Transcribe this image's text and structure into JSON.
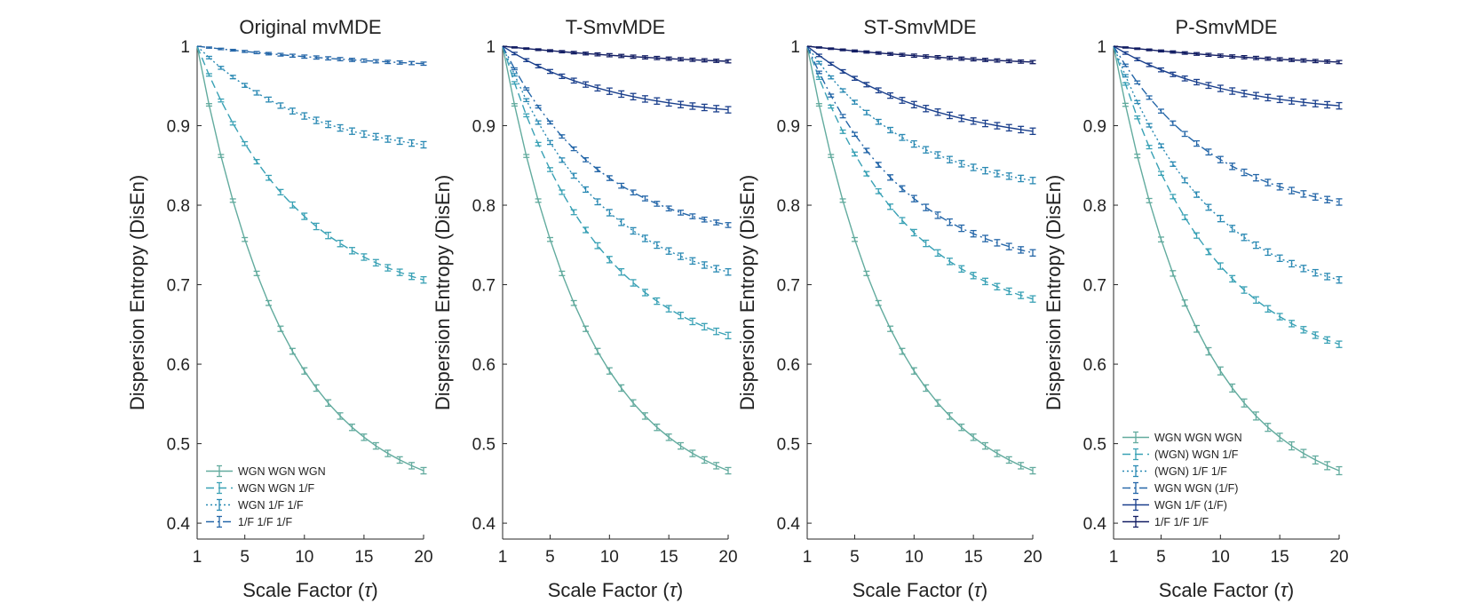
{
  "figure": {
    "x_label_main": "Scale Factor (",
    "x_label_tau": "τ",
    "x_label_end": ")",
    "y_label": "Dispersion Entropy (DisEn)"
  },
  "colors": {
    "c1": "#62ab9e",
    "c2": "#39a1b5",
    "c3": "#2989b3",
    "c4": "#2466a8",
    "c5": "#1a3f8c",
    "c6": "#121d63"
  },
  "chart_data": [
    {
      "type": "line",
      "title": "Original mvMDE",
      "xlabel": "Scale Factor (τ)",
      "ylabel": "Dispersion Entropy (DisEn)",
      "xlim": [
        1,
        20
      ],
      "ylim": [
        0.38,
        1.0
      ],
      "xticks": [
        "1",
        "5",
        "10",
        "15",
        "20"
      ],
      "yticks": [
        "0.4",
        "0.5",
        "0.6",
        "0.7",
        "0.8",
        "0.9",
        "1"
      ],
      "legend_position": "bottom-left",
      "series": [
        {
          "name": "WGN WGN WGN",
          "style": "solid",
          "color": "#62ab9e",
          "end": 0.466,
          "k": 2.6,
          "err": 0.004
        },
        {
          "name": "WGN WGN 1/F",
          "style": "dashed",
          "color": "#39a1b5",
          "end": 0.706,
          "k": 2.2,
          "err": 0.004
        },
        {
          "name": "WGN 1/F 1/F",
          "style": "dotted",
          "color": "#2989b3",
          "end": 0.876,
          "k": 2.0,
          "err": 0.004
        },
        {
          "name": "1/F 1/F 1/F",
          "style": "dashdot",
          "color": "#2466a8",
          "end": 0.978,
          "k": 1.0,
          "err": 0.002
        }
      ]
    },
    {
      "type": "line",
      "title": "T-SmvMDE",
      "xlabel": "Scale Factor (τ)",
      "ylabel": "Dispersion Entropy (DisEn)",
      "xlim": [
        1,
        20
      ],
      "ylim": [
        0.38,
        1.0
      ],
      "xticks": [
        "1",
        "5",
        "10",
        "15",
        "20"
      ],
      "yticks": [
        "0.4",
        "0.5",
        "0.6",
        "0.7",
        "0.8",
        "0.9",
        "1"
      ],
      "series": [
        {
          "name": "WGN WGN WGN",
          "style": "solid",
          "color": "#62ab9e",
          "end": 0.466,
          "k": 2.6,
          "err": 0.004
        },
        {
          "name": "(WGN) WGN 1/F",
          "style": "dashed",
          "color": "#39a1b5",
          "end": 0.636,
          "k": 2.3,
          "err": 0.004
        },
        {
          "name": "(WGN) 1/F 1/F",
          "style": "dotted",
          "color": "#2989b3",
          "end": 0.716,
          "k": 2.3,
          "err": 0.004
        },
        {
          "name": "WGN WGN (1/F)",
          "style": "dashdot",
          "color": "#2466a8",
          "end": 0.775,
          "k": 2.3,
          "err": 0.003
        },
        {
          "name": "WGN 1/F (1/F)",
          "style": "solid",
          "color": "#1a3f8c",
          "end": 0.92,
          "k": 2.0,
          "err": 0.004
        },
        {
          "name": "1/F 1/F 1/F",
          "style": "solid",
          "color": "#121d63",
          "end": 0.981,
          "k": 1.0,
          "err": 0.002
        }
      ]
    },
    {
      "type": "line",
      "title": "ST-SmvMDE",
      "xlabel": "Scale Factor (τ)",
      "ylabel": "Dispersion Entropy (DisEn)",
      "xlim": [
        1,
        20
      ],
      "ylim": [
        0.38,
        1.0
      ],
      "xticks": [
        "1",
        "5",
        "10",
        "15",
        "20"
      ],
      "yticks": [
        "0.4",
        "0.5",
        "0.6",
        "0.7",
        "0.8",
        "0.9",
        "1"
      ],
      "series": [
        {
          "name": "WGN WGN WGN",
          "style": "solid",
          "color": "#62ab9e",
          "end": 0.466,
          "k": 2.6,
          "err": 0.004
        },
        {
          "name": "(WGN) WGN 1/F",
          "style": "dashed",
          "color": "#39a1b5",
          "end": 0.682,
          "k": 2.3,
          "err": 0.004
        },
        {
          "name": "(WGN) 1/F 1/F",
          "style": "dotted",
          "color": "#2989b3",
          "end": 0.831,
          "k": 2.2,
          "err": 0.004
        },
        {
          "name": "WGN WGN (1/F)",
          "style": "dashdot",
          "color": "#2466a8",
          "end": 0.74,
          "k": 2.3,
          "err": 0.004
        },
        {
          "name": "WGN 1/F (1/F)",
          "style": "solid",
          "color": "#1a3f8c",
          "end": 0.893,
          "k": 1.8,
          "err": 0.004
        },
        {
          "name": "1/F 1/F 1/F",
          "style": "solid",
          "color": "#121d63",
          "end": 0.98,
          "k": 1.0,
          "err": 0.002
        }
      ]
    },
    {
      "type": "line",
      "title": "P-SmvMDE",
      "xlabel": "Scale Factor (τ)",
      "ylabel": "Dispersion Entropy (DisEn)",
      "xlim": [
        1,
        20
      ],
      "ylim": [
        0.38,
        1.0
      ],
      "xticks": [
        "1",
        "5",
        "10",
        "15",
        "20"
      ],
      "yticks": [
        "0.4",
        "0.5",
        "0.6",
        "0.7",
        "0.8",
        "0.9",
        "1"
      ],
      "legend_position": "bottom-left",
      "series": [
        {
          "name": "WGN WGN WGN",
          "style": "solid",
          "color": "#62ab9e",
          "end": 0.466,
          "k": 2.6,
          "err": 0.005
        },
        {
          "name": "(WGN) WGN 1/F",
          "style": "dashed",
          "color": "#39a1b5",
          "end": 0.625,
          "k": 2.3,
          "err": 0.004
        },
        {
          "name": "(WGN) 1/F 1/F",
          "style": "dotted",
          "color": "#2989b3",
          "end": 0.706,
          "k": 2.3,
          "err": 0.004
        },
        {
          "name": "WGN WGN (1/F)",
          "style": "dashdot",
          "color": "#2466a8",
          "end": 0.804,
          "k": 2.2,
          "err": 0.004
        },
        {
          "name": "WGN 1/F (1/F)",
          "style": "solid",
          "color": "#1a3f8c",
          "end": 0.925,
          "k": 2.0,
          "err": 0.004
        },
        {
          "name": "1/F 1/F 1/F",
          "style": "solid",
          "color": "#121d63",
          "end": 0.98,
          "k": 1.0,
          "err": 0.002
        }
      ]
    }
  ]
}
